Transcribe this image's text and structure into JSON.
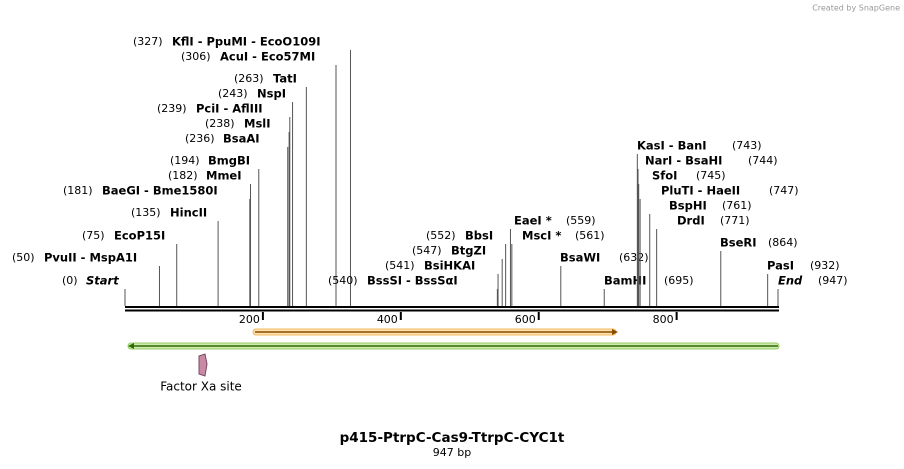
{
  "credit": "Created by SnapGene",
  "map": {
    "title": "p415-PtrpC-Cas9-TtrpC-CYC1t",
    "size_label": "947 bp",
    "length": 947,
    "ruler_ticks": [
      200,
      400,
      600,
      800
    ],
    "features": [
      {
        "name": "Factor Xa site"
      }
    ],
    "sites": [
      {
        "position": 0,
        "position_label": "(0)",
        "name": "Start",
        "side": "left",
        "italic": true
      },
      {
        "position": 50,
        "position_label": "(50)",
        "name": "PvuII  - MspA1I",
        "side": "left"
      },
      {
        "position": 75,
        "position_label": "(75)",
        "name": "EcoP15I",
        "side": "left"
      },
      {
        "position": 135,
        "position_label": "(135)",
        "name": "HincII",
        "side": "left"
      },
      {
        "position": 181,
        "position_label": "(181)",
        "name": "BaeGI  - Bme1580I",
        "side": "left"
      },
      {
        "position": 182,
        "position_label": "(182)",
        "name": "MmeI",
        "side": "left"
      },
      {
        "position": 194,
        "position_label": "(194)",
        "name": "BmgBI",
        "side": "left"
      },
      {
        "position": 236,
        "position_label": "(236)",
        "name": "BsaAI",
        "side": "left"
      },
      {
        "position": 238,
        "position_label": "(238)",
        "name": "MslI",
        "side": "left"
      },
      {
        "position": 239,
        "position_label": "(239)",
        "name": "PciI  - AflIII",
        "side": "left"
      },
      {
        "position": 243,
        "position_label": "(243)",
        "name": "NspI",
        "side": "left"
      },
      {
        "position": 263,
        "position_label": "(263)",
        "name": "TatI",
        "side": "left"
      },
      {
        "position": 306,
        "position_label": "(306)",
        "name": "AcuI  - Eco57MI",
        "side": "left"
      },
      {
        "position": 327,
        "position_label": "(327)",
        "name": "KflI  - PpuMI  - EcoO109I",
        "side": "left"
      },
      {
        "position": 540,
        "position_label": "(540)",
        "name": "BssSI  - BssSαI",
        "side": "left"
      },
      {
        "position": 541,
        "position_label": "(541)",
        "name": "BsiHKAI",
        "side": "left"
      },
      {
        "position": 547,
        "position_label": "(547)",
        "name": "BtgZI",
        "side": "left"
      },
      {
        "position": 552,
        "position_label": "(552)",
        "name": "BbsI",
        "side": "left"
      },
      {
        "position": 559,
        "position_label": "(559)",
        "name": "EaeI *",
        "side": "right"
      },
      {
        "position": 561,
        "position_label": "(561)",
        "name": "MscI *",
        "side": "right"
      },
      {
        "position": 632,
        "position_label": "(632)",
        "name": "BsaWI",
        "side": "right"
      },
      {
        "position": 695,
        "position_label": "(695)",
        "name": "BamHI",
        "side": "right"
      },
      {
        "position": 743,
        "position_label": "(743)",
        "name": "KasI  - BanI",
        "side": "right"
      },
      {
        "position": 744,
        "position_label": "(744)",
        "name": "NarI  - BsaHI",
        "side": "right"
      },
      {
        "position": 745,
        "position_label": "(745)",
        "name": "SfoI",
        "side": "right"
      },
      {
        "position": 747,
        "position_label": "(747)",
        "name": "PluTI  - HaeII",
        "side": "right"
      },
      {
        "position": 761,
        "position_label": "(761)",
        "name": "BspHI",
        "side": "right"
      },
      {
        "position": 771,
        "position_label": "(771)",
        "name": "DrdI",
        "side": "right"
      },
      {
        "position": 864,
        "position_label": "(864)",
        "name": "BseRI",
        "side": "right"
      },
      {
        "position": 932,
        "position_label": "(932)",
        "name": "PasI",
        "side": "right"
      },
      {
        "position": 947,
        "position_label": "(947)",
        "name": "End",
        "side": "right",
        "italic": true
      }
    ]
  }
}
